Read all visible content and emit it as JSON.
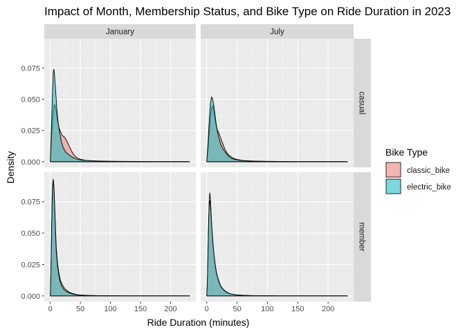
{
  "chart_data": {
    "type": "area",
    "title": "Impact of Month, Membership Status, and Bike Type on Ride Duration in 2023",
    "xlabel": "Ride Duration (minutes)",
    "ylabel": "Density",
    "xlim": [
      -10,
      242
    ],
    "ylim": [
      -0.0045,
      0.0985
    ],
    "x_ticks": [
      0,
      50,
      100,
      150,
      200
    ],
    "y_ticks": [
      0.0,
      0.025,
      0.05,
      0.075
    ],
    "x_tick_labels": [
      "0",
      "50",
      "100",
      "150",
      "200"
    ],
    "y_tick_labels": [
      "0.000",
      "0.025",
      "0.050",
      "0.075"
    ],
    "columns": [
      "January",
      "July"
    ],
    "rows": [
      "casual",
      "member"
    ],
    "grid": true,
    "legend": {
      "title": "Bike Type",
      "position": "right",
      "entries": [
        {
          "name": "classic_bike",
          "color": "#F8766D"
        },
        {
          "name": "electric_bike",
          "color": "#00BFC4"
        }
      ]
    },
    "panels": [
      {
        "month": "January",
        "member": "casual",
        "series": [
          {
            "name": "classic_bike",
            "x": [
              0,
              2,
              4,
              5,
              7,
              9,
              11,
              14,
              17,
              20,
              23,
              26,
              28,
              30,
              33,
              36,
              40,
              45,
              50,
              60,
              70,
              80,
              90,
              100,
              120,
              150,
              180,
              200,
              225,
              232
            ],
            "y": [
              0,
              0.019,
              0.034,
              0.041,
              0.046,
              0.043,
              0.036,
              0.028,
              0.024,
              0.021,
              0.02,
              0.018,
              0.016,
              0.014,
              0.011,
              0.008,
              0.005,
              0.003,
              0.002,
              0.001,
              0.0007,
              0.0005,
              0.0004,
              0.0003,
              0.0002,
              0.0001,
              0.0001,
              0.0001,
              0.0001,
              0
            ]
          },
          {
            "name": "electric_bike",
            "x": [
              0,
              2,
              4,
              5,
              6,
              7,
              9,
              11,
              13,
              15,
              18,
              21,
              25,
              30,
              35,
              40,
              45,
              50,
              60,
              70,
              80,
              90,
              100,
              120,
              150,
              180,
              200,
              225,
              232
            ],
            "y": [
              0,
              0.03,
              0.06,
              0.072,
              0.074,
              0.07,
              0.056,
              0.042,
              0.032,
              0.025,
              0.017,
              0.012,
              0.008,
              0.006,
              0.004,
              0.003,
              0.002,
              0.0015,
              0.001,
              0.0008,
              0.0006,
              0.0005,
              0.0004,
              0.0003,
              0.0002,
              0.0001,
              0.0001,
              0.0001,
              0
            ]
          }
        ]
      },
      {
        "month": "July",
        "member": "casual",
        "series": [
          {
            "name": "classic_bike",
            "x": [
              0,
              2,
              4,
              6,
              8,
              10,
              12,
              14,
              16,
              18,
              20,
              23,
              26,
              30,
              35,
              40,
              45,
              50,
              60,
              70,
              80,
              100,
              120,
              150,
              180,
              200,
              225,
              232
            ],
            "y": [
              0,
              0.01,
              0.023,
              0.035,
              0.043,
              0.045,
              0.04,
              0.033,
              0.028,
              0.025,
              0.023,
              0.019,
              0.015,
              0.01,
              0.006,
              0.004,
              0.0025,
              0.0018,
              0.001,
              0.0007,
              0.0005,
              0.0003,
              0.0002,
              0.0001,
              0.0001,
              0.0001,
              0.0001,
              0
            ]
          },
          {
            "name": "electric_bike",
            "x": [
              0,
              2,
              4,
              6,
              8,
              10,
              12,
              14,
              16,
              18,
              20,
              23,
              26,
              30,
              35,
              40,
              45,
              50,
              60,
              70,
              80,
              100,
              120,
              150,
              180,
              200,
              225,
              232
            ],
            "y": [
              0,
              0.014,
              0.032,
              0.046,
              0.052,
              0.05,
              0.044,
              0.036,
              0.029,
              0.023,
              0.019,
              0.014,
              0.011,
              0.008,
              0.005,
              0.003,
              0.002,
              0.0015,
              0.0009,
              0.0006,
              0.0004,
              0.0003,
              0.0002,
              0.0001,
              0.0001,
              0.0001,
              0.0001,
              0
            ]
          }
        ]
      },
      {
        "month": "January",
        "member": "member",
        "series": [
          {
            "name": "classic_bike",
            "x": [
              0,
              1,
              2,
              3,
              4,
              5,
              6,
              7,
              8,
              9,
              10,
              12,
              14,
              16,
              18,
              20,
              23,
              26,
              30,
              35,
              40,
              45,
              50,
              60,
              70,
              80,
              100,
              120,
              150,
              180,
              200,
              225,
              232
            ],
            "y": [
              0,
              0.018,
              0.045,
              0.07,
              0.085,
              0.09,
              0.087,
              0.076,
              0.062,
              0.049,
              0.038,
              0.026,
              0.019,
              0.014,
              0.011,
              0.009,
              0.0065,
              0.005,
              0.0035,
              0.0022,
              0.0015,
              0.001,
              0.0007,
              0.0004,
              0.0003,
              0.0002,
              0.0002,
              0.0001,
              0.0001,
              0.0001,
              0.0001,
              0.0001,
              0
            ]
          },
          {
            "name": "electric_bike",
            "x": [
              0,
              1,
              2,
              3,
              4,
              5,
              6,
              7,
              8,
              9,
              10,
              12,
              14,
              16,
              18,
              20,
              23,
              26,
              30,
              35,
              40,
              45,
              50,
              60,
              70,
              80,
              100,
              120,
              150,
              180,
              200,
              225,
              232
            ],
            "y": [
              0,
              0.02,
              0.05,
              0.076,
              0.09,
              0.093,
              0.088,
              0.075,
              0.06,
              0.046,
              0.035,
              0.024,
              0.017,
              0.012,
              0.009,
              0.007,
              0.005,
              0.0038,
              0.0027,
              0.0018,
              0.0012,
              0.0008,
              0.0006,
              0.0004,
              0.0003,
              0.0002,
              0.0002,
              0.0001,
              0.0001,
              0.0001,
              0.0001,
              0.0001,
              0
            ]
          }
        ]
      },
      {
        "month": "July",
        "member": "member",
        "series": [
          {
            "name": "classic_bike",
            "x": [
              0,
              1,
              2,
              3,
              4,
              5,
              6,
              7,
              8,
              10,
              12,
              14,
              16,
              18,
              20,
              23,
              26,
              30,
              35,
              40,
              45,
              50,
              60,
              70,
              80,
              100,
              120,
              150,
              180,
              200,
              225,
              232
            ],
            "y": [
              0,
              0.01,
              0.03,
              0.055,
              0.075,
              0.082,
              0.078,
              0.068,
              0.058,
              0.042,
              0.032,
              0.024,
              0.018,
              0.014,
              0.011,
              0.0075,
              0.0055,
              0.0035,
              0.0022,
              0.0015,
              0.001,
              0.0007,
              0.0004,
              0.0003,
              0.0002,
              0.0002,
              0.0001,
              0.0001,
              0.0001,
              0.0001,
              0.0001,
              0
            ]
          },
          {
            "name": "electric_bike",
            "x": [
              0,
              1,
              2,
              3,
              4,
              5,
              6,
              7,
              8,
              10,
              12,
              14,
              16,
              18,
              20,
              23,
              26,
              30,
              35,
              40,
              45,
              50,
              60,
              70,
              80,
              100,
              120,
              150,
              180,
              200,
              225,
              232
            ],
            "y": [
              0,
              0.012,
              0.035,
              0.058,
              0.072,
              0.076,
              0.073,
              0.066,
              0.058,
              0.044,
              0.033,
              0.025,
              0.019,
              0.015,
              0.012,
              0.008,
              0.006,
              0.004,
              0.0025,
              0.0016,
              0.0011,
              0.0008,
              0.0005,
              0.0003,
              0.0002,
              0.0002,
              0.0001,
              0.0001,
              0.0001,
              0.0001,
              0.0001,
              0
            ]
          }
        ]
      }
    ]
  }
}
